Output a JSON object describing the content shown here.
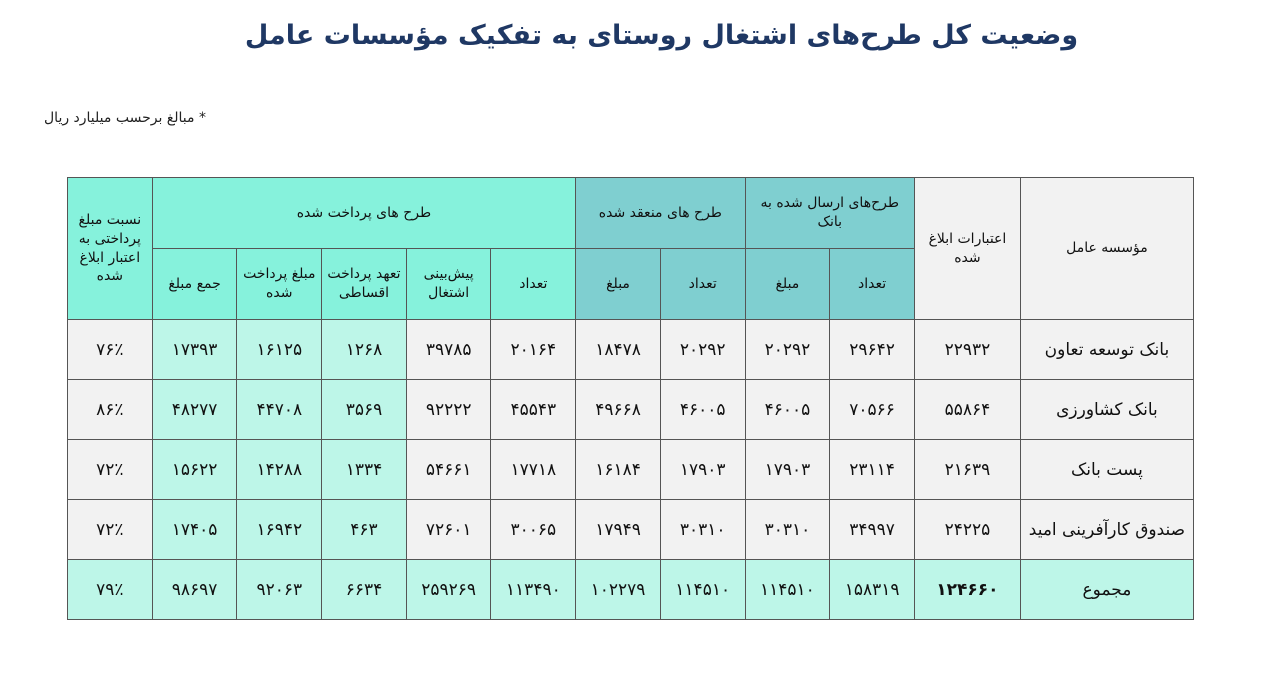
{
  "title": "وضعیت کل طرح‌های اشتغال روستای به تفکیک مؤسسات عامل",
  "note": "* مبالغ برحسب میلیارد ریال",
  "headers": {
    "institution": "مؤسسه عامل",
    "credit": "اعتبارات ابلاغ شده",
    "sent_group": "طرح‌های ارسال شده به بانک",
    "concluded_group": "طرح های منعقد شده",
    "paid_group": "طرح های پرداخت شده",
    "ratio": "نسبت مبلغ پرداختی به اعتبار ابلاغ شده",
    "count": "تعداد",
    "amount": "مبلغ",
    "employment": "پیش‌بینی اشتغال",
    "installment": "تعهد پرداخت اقساطی",
    "paid_amount": "مبلغ پرداخت شده",
    "total_amount": "جمع مبلغ"
  },
  "rows": [
    {
      "name": "بانک توسعه تعاون",
      "credit": "۲۲۹۳۲",
      "sent_count": "۲۹۶۴۲",
      "sent_amount": "۲۰۲۹۲",
      "conc_count": "۲۰۲۹۲",
      "conc_amount": "۱۸۴۷۸",
      "paid_count": "۲۰۱۶۴",
      "employment": "۳۹۷۸۵",
      "installment": "۱۲۶۸",
      "paid_amount": "۱۶۱۲۵",
      "total_amount": "۱۷۳۹۳",
      "ratio": "۷۶٪"
    },
    {
      "name": "بانک کشاورزی",
      "credit": "۵۵۸۶۴",
      "sent_count": "۷۰۵۶۶",
      "sent_amount": "۴۶۰۰۵",
      "conc_count": "۴۶۰۰۵",
      "conc_amount": "۴۹۶۶۸",
      "paid_count": "۴۵۵۴۳",
      "employment": "۹۲۲۲۲",
      "installment": "۳۵۶۹",
      "paid_amount": "۴۴۷۰۸",
      "total_amount": "۴۸۲۷۷",
      "ratio": "۸۶٪"
    },
    {
      "name": "پست بانک",
      "credit": "۲۱۶۳۹",
      "sent_count": "۲۳۱۱۴",
      "sent_amount": "۱۷۹۰۳",
      "conc_count": "۱۷۹۰۳",
      "conc_amount": "۱۶۱۸۴",
      "paid_count": "۱۷۷۱۸",
      "employment": "۵۴۶۶۱",
      "installment": "۱۳۳۴",
      "paid_amount": "۱۴۲۸۸",
      "total_amount": "۱۵۶۲۲",
      "ratio": "۷۲٪"
    },
    {
      "name": "صندوق کارآفرینی امید",
      "credit": "۲۴۲۲۵",
      "sent_count": "۳۴۹۹۷",
      "sent_amount": "۳۰۳۱۰",
      "conc_count": "۳۰۳۱۰",
      "conc_amount": "۱۷۹۴۹",
      "paid_count": "۳۰۰۶۵",
      "employment": "۷۲۶۰۱",
      "installment": "۴۶۳",
      "paid_amount": "۱۶۹۴۲",
      "total_amount": "۱۷۴۰۵",
      "ratio": "۷۲٪"
    }
  ],
  "total": {
    "name": "مجموع",
    "credit": "۱۲۴۶۶۰",
    "sent_count": "۱۵۸۳۱۹",
    "sent_amount": "۱۱۴۵۱۰",
    "conc_count": "۱۱۴۵۱۰",
    "conc_amount": "۱۰۲۲۷۹",
    "paid_count": "۱۱۳۴۹۰",
    "employment": "۲۵۹۲۶۹",
    "installment": "۶۶۳۴",
    "paid_amount": "۹۲۰۶۳",
    "total_amount": "۹۸۶۹۷",
    "ratio": "۷۹٪"
  }
}
